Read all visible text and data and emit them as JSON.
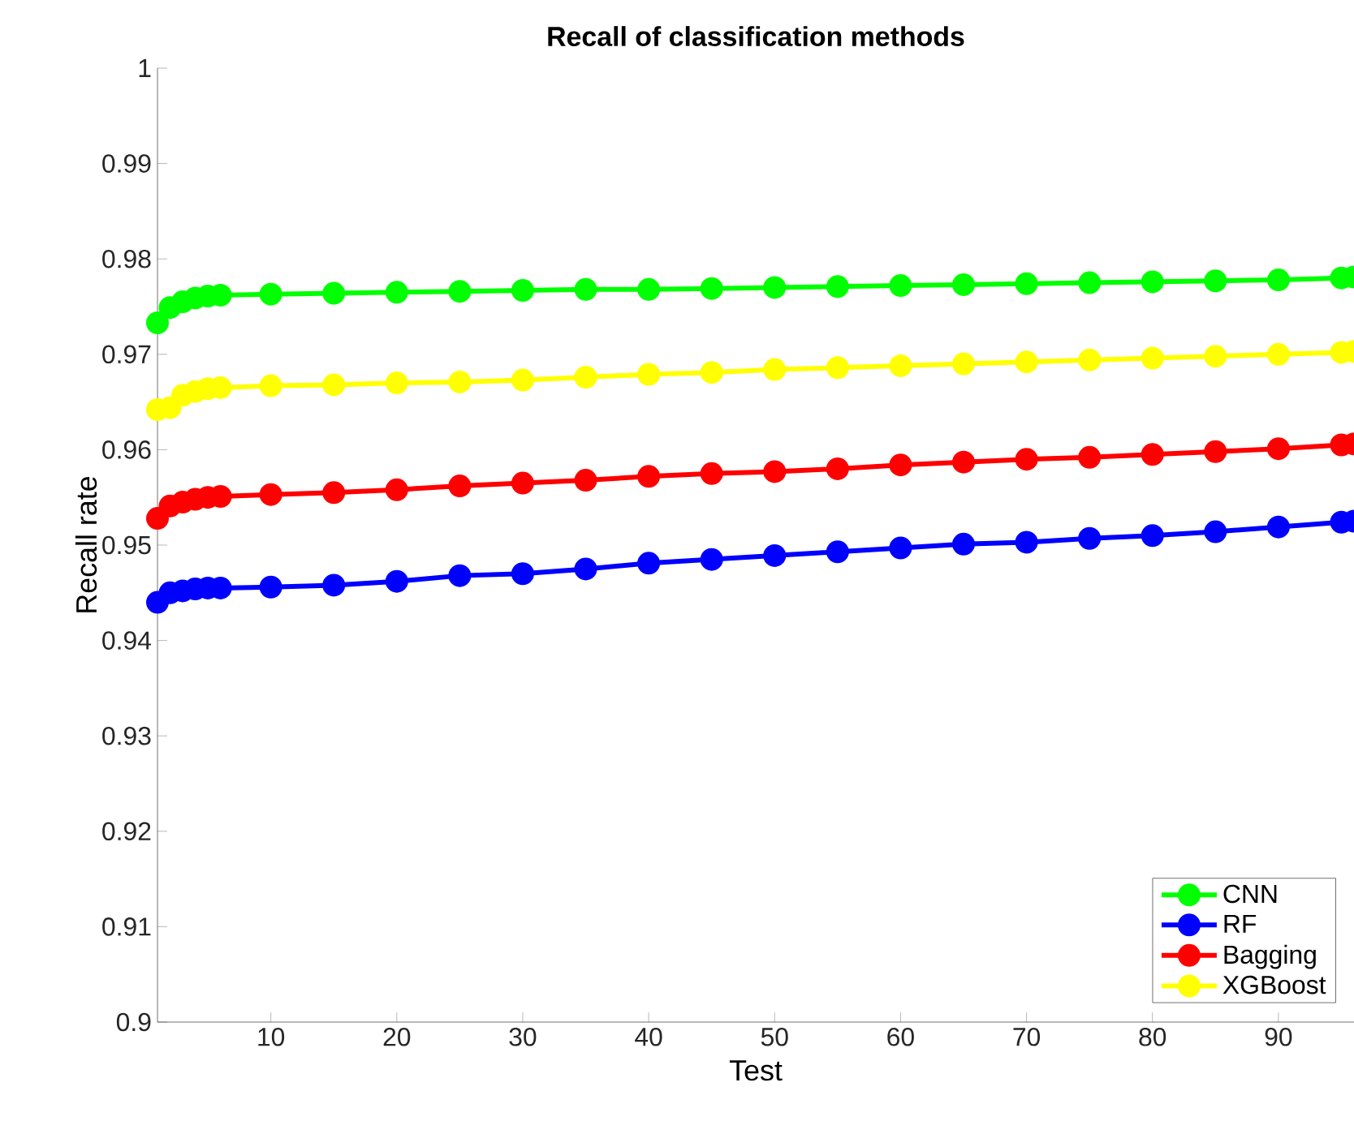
{
  "chart_data": {
    "type": "line",
    "title": "Recall of classification methods",
    "xlabel": "Test",
    "ylabel": "Recall rate",
    "x": [
      1,
      2,
      3,
      4,
      5,
      6,
      10,
      15,
      20,
      25,
      30,
      35,
      40,
      45,
      50,
      55,
      60,
      65,
      70,
      75,
      80,
      85,
      90,
      95,
      96
    ],
    "series": [
      {
        "name": "CNN",
        "color": "#00ff00",
        "values": [
          0.9733,
          0.9749,
          0.9755,
          0.9759,
          0.9761,
          0.9762,
          0.9763,
          0.9764,
          0.9765,
          0.9766,
          0.9767,
          0.9768,
          0.9768,
          0.9769,
          0.977,
          0.9771,
          0.9772,
          0.9773,
          0.9774,
          0.9775,
          0.9776,
          0.9777,
          0.9778,
          0.978,
          0.9781
        ]
      },
      {
        "name": "RF",
        "color": "#0000ff",
        "values": [
          0.944,
          0.945,
          0.9452,
          0.9454,
          0.9455,
          0.9455,
          0.9456,
          0.9458,
          0.9462,
          0.9468,
          0.947,
          0.9475,
          0.9481,
          0.9485,
          0.9489,
          0.9493,
          0.9497,
          0.9501,
          0.9503,
          0.9507,
          0.951,
          0.9514,
          0.9519,
          0.9524,
          0.9525
        ]
      },
      {
        "name": "Bagging",
        "color": "#ff0000",
        "values": [
          0.9528,
          0.9541,
          0.9545,
          0.9548,
          0.955,
          0.9551,
          0.9553,
          0.9555,
          0.9558,
          0.9562,
          0.9565,
          0.9568,
          0.9572,
          0.9575,
          0.9577,
          0.958,
          0.9584,
          0.9587,
          0.959,
          0.9592,
          0.9595,
          0.9598,
          0.9601,
          0.9605,
          0.9606
        ]
      },
      {
        "name": "XGBoost",
        "color": "#ffff00",
        "values": [
          0.9642,
          0.9644,
          0.9657,
          0.9661,
          0.9664,
          0.9665,
          0.9667,
          0.9668,
          0.967,
          0.9671,
          0.9673,
          0.9676,
          0.9679,
          0.9681,
          0.9684,
          0.9686,
          0.9688,
          0.969,
          0.9692,
          0.9694,
          0.9696,
          0.9698,
          0.97,
          0.9702,
          0.9703
        ]
      }
    ],
    "xlim": [
      1,
      96
    ],
    "ylim": [
      0.9,
      1
    ],
    "xticks": [
      10,
      20,
      30,
      40,
      50,
      60,
      70,
      80,
      90
    ],
    "yticks": [
      0.9,
      0.91,
      0.92,
      0.93,
      0.94,
      0.95,
      0.96,
      0.97,
      0.98,
      0.99,
      1
    ],
    "legend": "bottom right",
    "marker": "circle",
    "line_style": "solid"
  }
}
